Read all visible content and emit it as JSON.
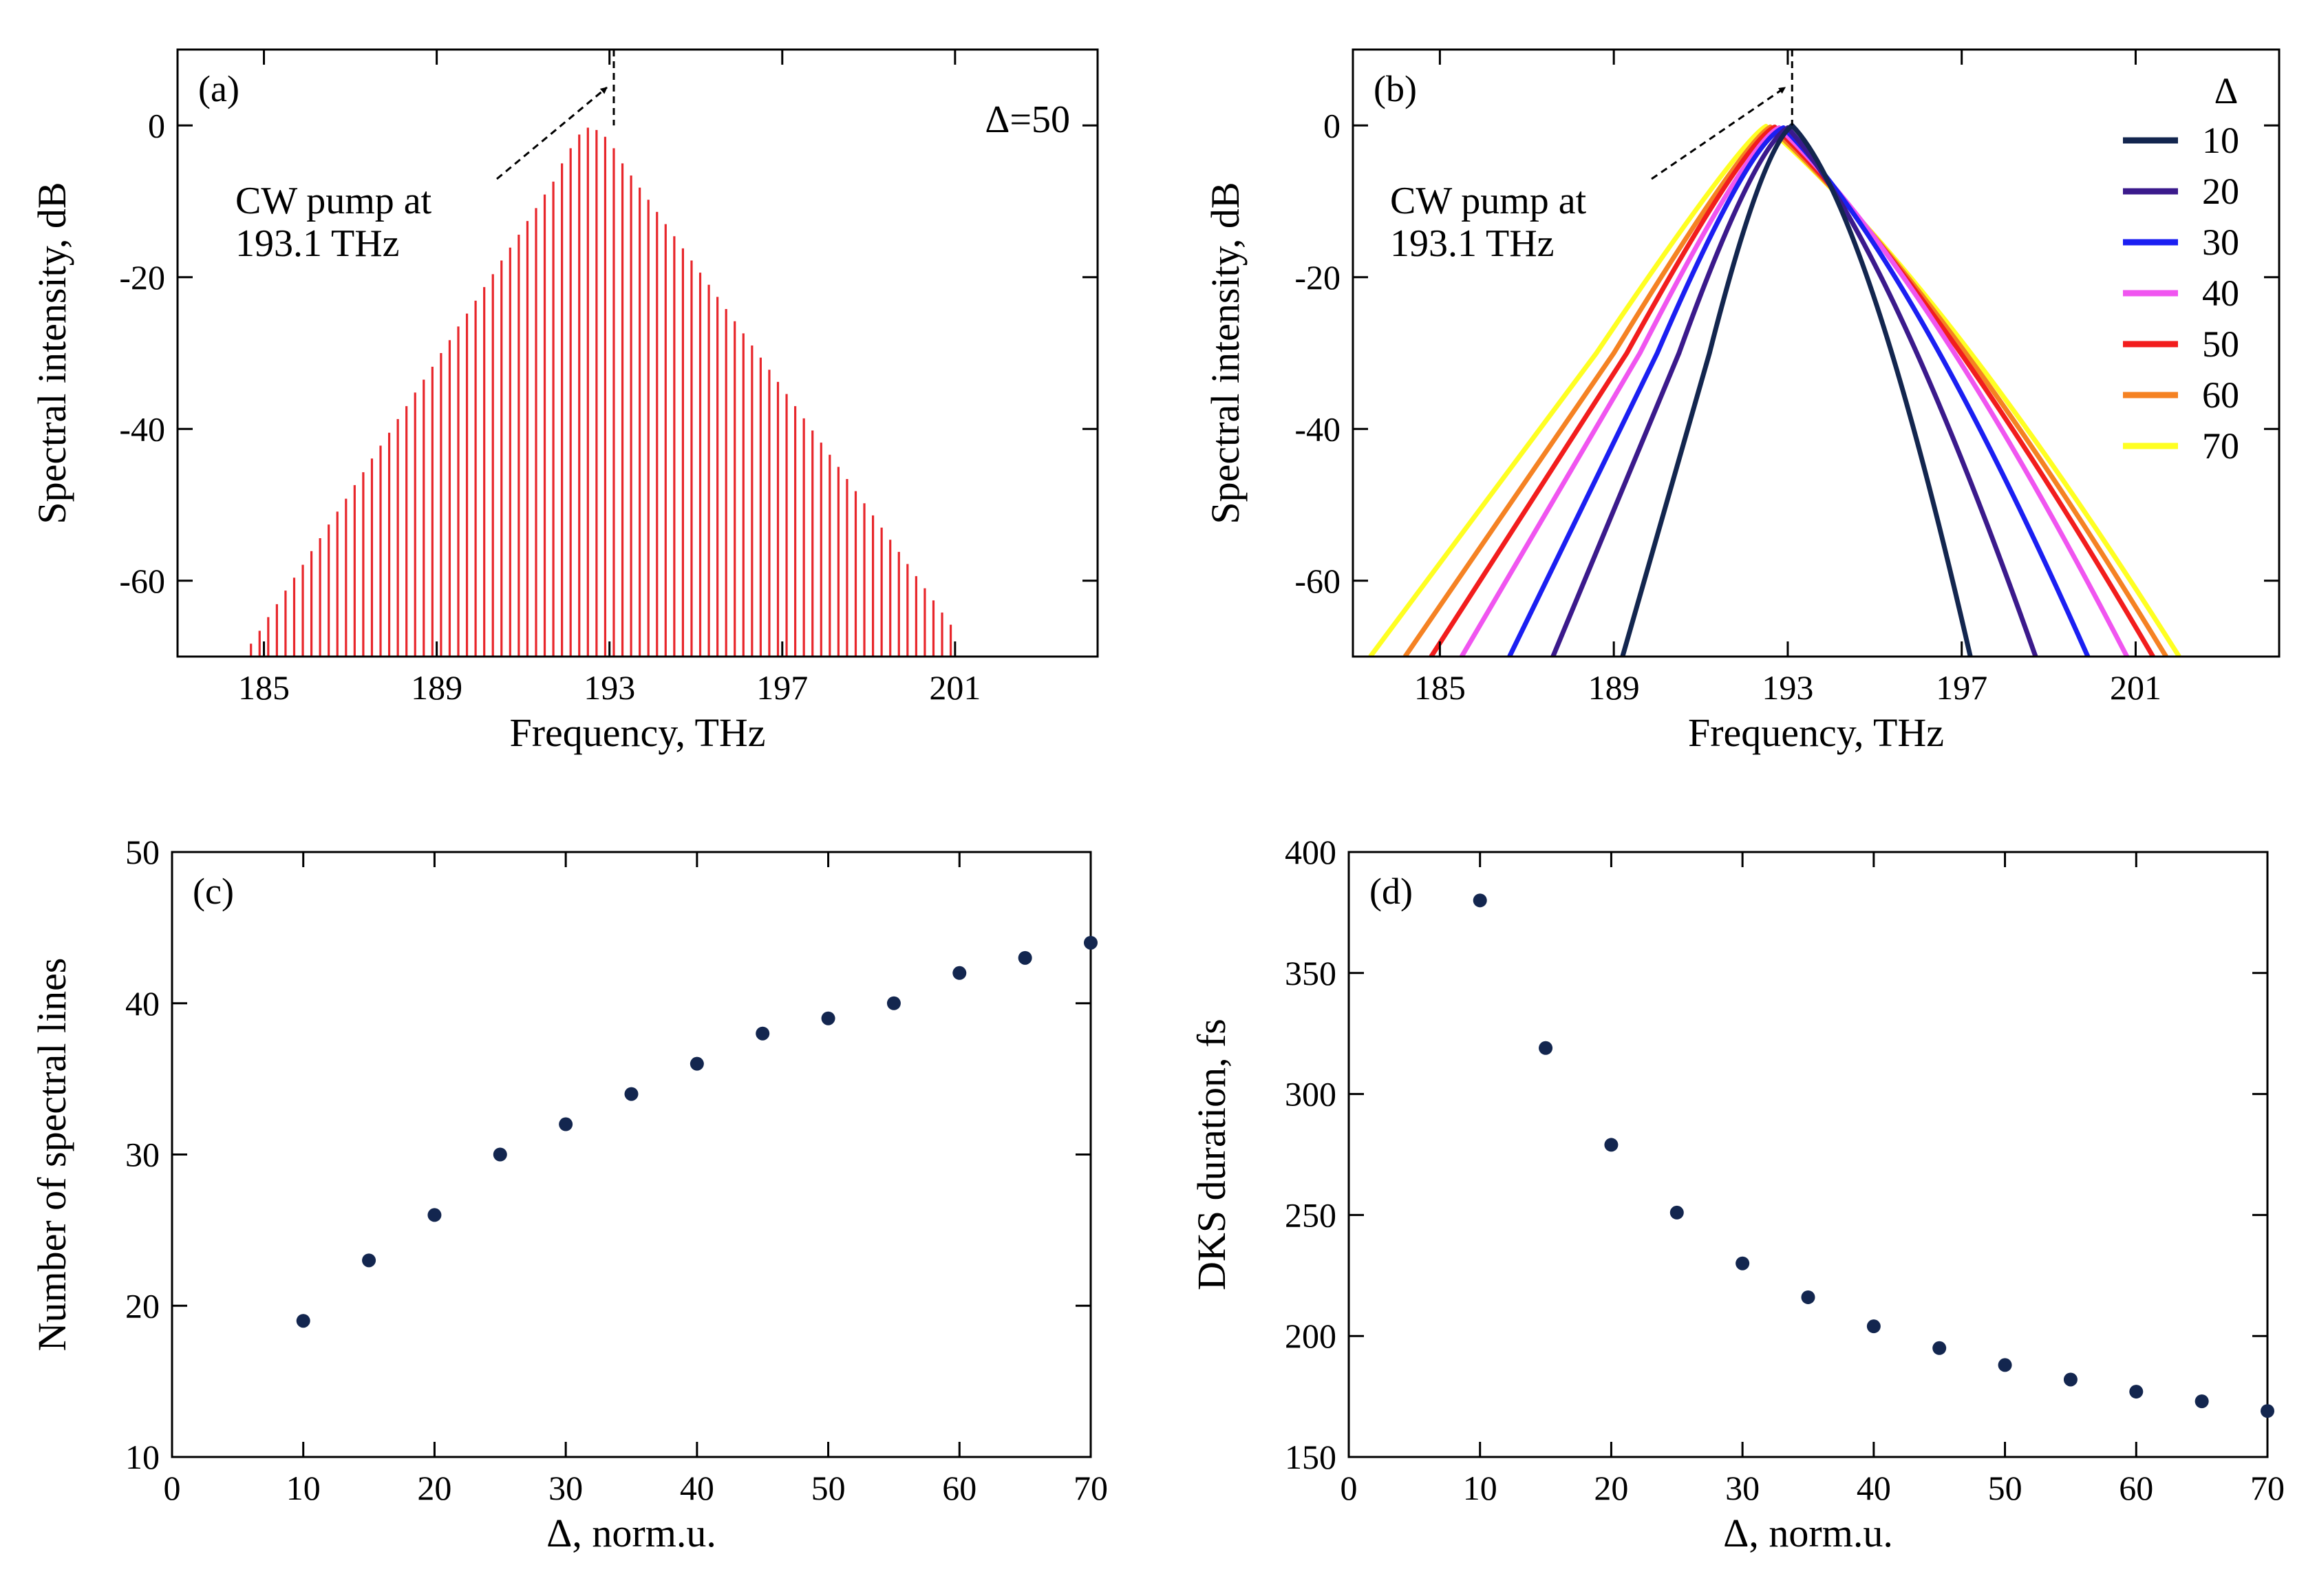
{
  "chart_data": [
    {
      "id": "a",
      "type": "bar",
      "panel_label": "(a)",
      "xlabel": "Frequency, THz",
      "ylabel": "Spectral intensity, dB",
      "xlim": [
        183,
        204.3
      ],
      "ylim": [
        -70,
        10
      ],
      "xticks": [
        185,
        189,
        193,
        197,
        201
      ],
      "yticks": [
        0,
        -20,
        -40,
        -60
      ],
      "bar_color": "#e8262b",
      "annotation": "Δ=50",
      "pump": {
        "frequency": 193.1,
        "label_line1": "CW pump at",
        "label_line2": "193.1 THz"
      },
      "spectral_lines": {
        "spacing_thz": 0.2,
        "peak_frequency": 192.5,
        "peak_db": -0.3,
        "left_lines": 39,
        "right_lines": 42,
        "floor_db": -70,
        "values_db": [
          -68.3,
          -66.6,
          -64.8,
          -63.1,
          -61.3,
          -59.6,
          -57.9,
          -56.1,
          -54.4,
          -52.6,
          -50.9,
          -49.2,
          -47.4,
          -45.7,
          -43.9,
          -42.2,
          -40.5,
          -38.7,
          -37.0,
          -35.2,
          -33.5,
          -31.8,
          -30.0,
          -28.3,
          -26.5,
          -24.8,
          -23.1,
          -21.3,
          -19.6,
          -17.8,
          -16.1,
          -14.4,
          -12.6,
          -10.9,
          -9.1,
          -7.4,
          -5.0,
          -3.0,
          -1.2,
          -0.3,
          -0.6,
          -1.5,
          -3.0,
          -5.0,
          -6.6,
          -8.2,
          -9.8,
          -11.4,
          -13.0,
          -14.6,
          -16.2,
          -17.8,
          -19.4,
          -21.0,
          -22.6,
          -24.2,
          -25.8,
          -27.4,
          -29.0,
          -30.6,
          -32.2,
          -33.8,
          -35.4,
          -37.0,
          -38.6,
          -40.2,
          -41.8,
          -43.4,
          -45.0,
          -46.6,
          -48.2,
          -49.8,
          -51.4,
          -53.0,
          -54.6,
          -56.2,
          -57.8,
          -59.4,
          -61.0,
          -62.6,
          -64.2,
          -65.8
        ]
      }
    },
    {
      "id": "b",
      "type": "line",
      "panel_label": "(b)",
      "xlabel": "Frequency, THz",
      "ylabel": "Spectral intensity, dB",
      "xlim": [
        183,
        204.3
      ],
      "ylim": [
        -70,
        10
      ],
      "xticks": [
        185,
        189,
        193,
        197,
        201
      ],
      "yticks": [
        0,
        -20,
        -40,
        -60
      ],
      "legend_title": "Δ",
      "legend_position": "top-right",
      "pump": {
        "frequency": 193.1,
        "label_line1": "CW pump at",
        "label_line2": "193.1 THz"
      },
      "series": [
        {
          "name": "10",
          "color": "#13264f",
          "x": [
            189.2,
            191.2,
            192.4,
            193.1,
            194.8,
            197.2
          ],
          "y": [
            -70,
            -30,
            -3,
            0,
            -10,
            -70
          ]
        },
        {
          "name": "20",
          "color": "#3b1a8c",
          "x": [
            187.6,
            190.5,
            192.2,
            193.0,
            195.3,
            198.7
          ],
          "y": [
            -70,
            -30,
            -3,
            -0.3,
            -15,
            -70
          ]
        },
        {
          "name": "30",
          "color": "#1b1ff2",
          "x": [
            186.6,
            190.0,
            192.1,
            192.9,
            195.8,
            199.9
          ],
          "y": [
            -70,
            -30,
            -2,
            -0.3,
            -17,
            -70
          ]
        },
        {
          "name": "40",
          "color": "#f055f0",
          "x": [
            185.5,
            189.6,
            192.1,
            192.8,
            196.2,
            200.8
          ],
          "y": [
            -70,
            -30,
            -2,
            -0.3,
            -19,
            -70
          ]
        },
        {
          "name": "50",
          "color": "#f21d1d",
          "x": [
            184.8,
            189.3,
            192.0,
            192.7,
            196.3,
            201.4
          ],
          "y": [
            -70,
            -30,
            -2,
            -0.2,
            -20,
            -70
          ]
        },
        {
          "name": "60",
          "color": "#f58223",
          "x": [
            184.2,
            189.0,
            192.0,
            192.6,
            196.4,
            201.7
          ],
          "y": [
            -70,
            -30,
            -2,
            -0.2,
            -20,
            -70
          ]
        },
        {
          "name": "70",
          "color": "#ffff22",
          "x": [
            183.4,
            188.6,
            191.9,
            192.5,
            196.5,
            202.0
          ],
          "y": [
            -70,
            -30,
            -2,
            -0.1,
            -20,
            -70
          ]
        }
      ]
    },
    {
      "id": "c",
      "type": "scatter",
      "panel_label": "(c)",
      "xlabel": "Δ, norm.u.",
      "ylabel": "Number of spectral lines",
      "xlim": [
        0,
        70
      ],
      "ylim": [
        10,
        50
      ],
      "xticks": [
        0,
        10,
        20,
        30,
        40,
        50,
        60,
        70
      ],
      "yticks": [
        10,
        20,
        30,
        40,
        50
      ],
      "marker_color": "#13264f",
      "x": [
        10,
        15,
        20,
        25,
        30,
        35,
        40,
        45,
        50,
        55,
        60,
        65,
        70
      ],
      "y": [
        19,
        23,
        26,
        30,
        32,
        34,
        36,
        38,
        39,
        40,
        42,
        43,
        44
      ]
    },
    {
      "id": "d",
      "type": "scatter",
      "panel_label": "(d)",
      "xlabel": "Δ, norm.u.",
      "ylabel": "DKS duration, fs",
      "xlim": [
        0,
        70
      ],
      "ylim": [
        150,
        400
      ],
      "xticks": [
        0,
        10,
        20,
        30,
        40,
        50,
        60,
        70
      ],
      "yticks": [
        150,
        200,
        250,
        300,
        350,
        400
      ],
      "marker_color": "#13264f",
      "x": [
        10,
        15,
        20,
        25,
        30,
        35,
        40,
        45,
        50,
        55,
        60,
        65,
        70
      ],
      "y": [
        380,
        319,
        279,
        251,
        230,
        216,
        204,
        195,
        188,
        182,
        177,
        173,
        169
      ]
    }
  ]
}
